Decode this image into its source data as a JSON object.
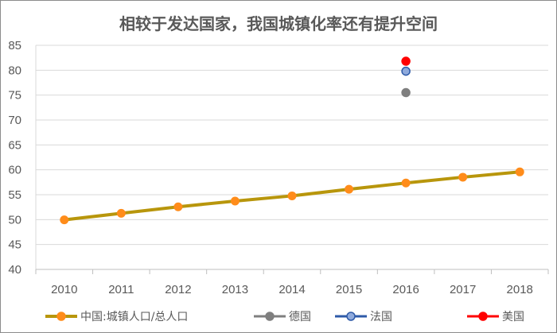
{
  "chart_data": {
    "type": "line",
    "title": "相较于发达国家，我国城镇化率还有提升空间",
    "xlabel": "",
    "ylabel": "",
    "categories": [
      "2010",
      "2011",
      "2012",
      "2013",
      "2014",
      "2015",
      "2016",
      "2017",
      "2018"
    ],
    "ylim": [
      40,
      85
    ],
    "yticks": [
      "40",
      "45",
      "50",
      "55",
      "60",
      "65",
      "70",
      "75",
      "80",
      "85"
    ],
    "grid": true,
    "legend_position": "bottom",
    "series": [
      {
        "name": "中国:城镇人口/总人口",
        "kind": "line",
        "color": "#b8960c",
        "marker_color": "#ff8c1a",
        "values": [
          49.95,
          51.27,
          52.57,
          53.73,
          54.77,
          56.1,
          57.35,
          58.52,
          59.58
        ]
      },
      {
        "name": "德国",
        "kind": "point",
        "color": "#7f7f7f",
        "marker_color": "#7f7f7f",
        "values": [
          null,
          null,
          null,
          null,
          null,
          null,
          75.5,
          null,
          null
        ]
      },
      {
        "name": "法国",
        "kind": "point",
        "color": "#2e5aa8",
        "marker_color": "#8faadc",
        "values": [
          null,
          null,
          null,
          null,
          null,
          null,
          79.8,
          null,
          null
        ]
      },
      {
        "name": "美国",
        "kind": "point",
        "color": "#ff0000",
        "marker_color": "#ff0000",
        "values": [
          null,
          null,
          null,
          null,
          null,
          null,
          81.8,
          null,
          null
        ]
      }
    ]
  }
}
